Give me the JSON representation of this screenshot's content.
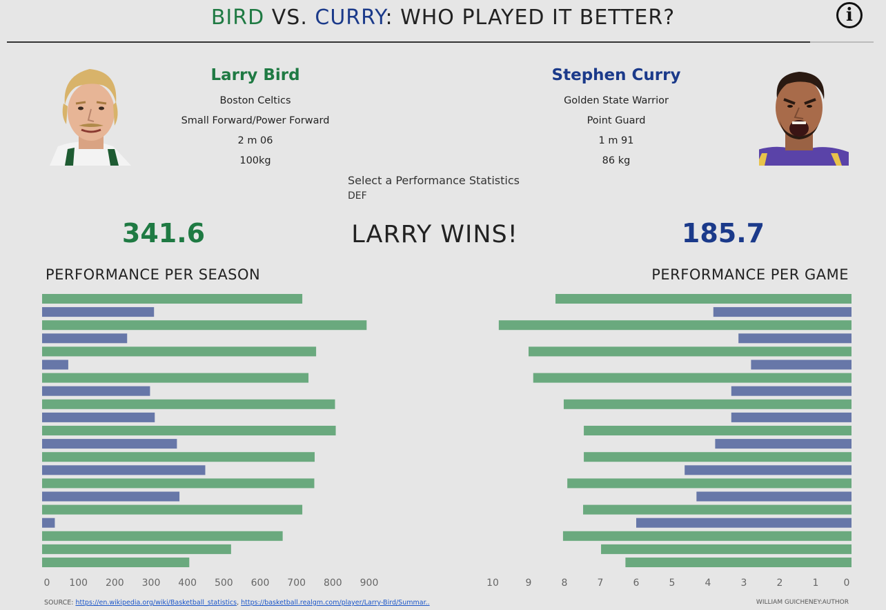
{
  "header": {
    "title_part1": "BIRD",
    "title_part2": " VS. ",
    "title_part3": "CURRY",
    "title_part4": ": WHO PLAYED IT BETTER?",
    "info_icon": "info-icon"
  },
  "players": {
    "bird": {
      "name": "Larry Bird",
      "team": "Boston Celtics",
      "position": "Small Forward/Power Forward",
      "height": "2 m 06",
      "weight": "100kg",
      "score": "341.6",
      "color": "#1f7a43"
    },
    "curry": {
      "name": "Stephen Curry",
      "team": "Golden State Warrior",
      "position": "Point Guard",
      "height": "1 m 91",
      "weight": "86 kg",
      "score": "185.7",
      "color": "#1b3a8a"
    }
  },
  "selector": {
    "label": "Select a Performance Statistics",
    "value": "DEF"
  },
  "result": "LARRY WINS!",
  "chart_data": [
    {
      "type": "bar",
      "title": "PERFORMANCE PER SEASON",
      "orientation": "horizontal",
      "xlim": [
        0,
        900
      ],
      "ticks": [
        0,
        100,
        200,
        300,
        400,
        500,
        600,
        700,
        800,
        900
      ],
      "colors": {
        "bird": "#6aa97e",
        "curry": "#6777a8"
      },
      "bars": [
        {
          "player": "bird",
          "value": 716
        },
        {
          "player": "curry",
          "value": 308
        },
        {
          "player": "bird",
          "value": 893
        },
        {
          "player": "curry",
          "value": 234
        },
        {
          "player": "bird",
          "value": 754
        },
        {
          "player": "curry",
          "value": 72
        },
        {
          "player": "bird",
          "value": 733
        },
        {
          "player": "curry",
          "value": 297
        },
        {
          "player": "bird",
          "value": 806
        },
        {
          "player": "curry",
          "value": 310
        },
        {
          "player": "bird",
          "value": 808
        },
        {
          "player": "curry",
          "value": 371
        },
        {
          "player": "bird",
          "value": 750
        },
        {
          "player": "curry",
          "value": 449
        },
        {
          "player": "bird",
          "value": 749
        },
        {
          "player": "curry",
          "value": 378
        },
        {
          "player": "bird",
          "value": 716
        },
        {
          "player": "curry",
          "value": 35
        },
        {
          "player": "bird",
          "value": 662
        },
        {
          "player": "bird",
          "value": 520
        },
        {
          "player": "bird",
          "value": 405
        }
      ]
    },
    {
      "type": "bar",
      "title": "PERFORMANCE PER GAME",
      "orientation": "horizontal-reversed",
      "xlim": [
        0,
        10
      ],
      "ticks": [
        10,
        9,
        8,
        7,
        6,
        5,
        4,
        3,
        2,
        1,
        0
      ],
      "colors": {
        "bird": "#6aa97e",
        "curry": "#6777a8"
      },
      "bars": [
        {
          "player": "bird",
          "value": 8.25
        },
        {
          "player": "curry",
          "value": 3.85
        },
        {
          "player": "bird",
          "value": 9.83
        },
        {
          "player": "curry",
          "value": 3.15
        },
        {
          "player": "bird",
          "value": 9.0
        },
        {
          "player": "curry",
          "value": 2.8
        },
        {
          "player": "bird",
          "value": 8.87
        },
        {
          "player": "curry",
          "value": 3.35
        },
        {
          "player": "bird",
          "value": 8.02
        },
        {
          "player": "curry",
          "value": 3.35
        },
        {
          "player": "bird",
          "value": 7.46
        },
        {
          "player": "curry",
          "value": 3.8
        },
        {
          "player": "bird",
          "value": 7.46
        },
        {
          "player": "curry",
          "value": 4.65
        },
        {
          "player": "bird",
          "value": 7.92
        },
        {
          "player": "curry",
          "value": 4.32
        },
        {
          "player": "bird",
          "value": 7.48
        },
        {
          "player": "curry",
          "value": 6.0
        },
        {
          "player": "bird",
          "value": 8.04
        },
        {
          "player": "bird",
          "value": 6.98
        },
        {
          "player": "bird",
          "value": 6.3
        }
      ]
    }
  ],
  "footer": {
    "source_label": "SOURCE: ",
    "link1": "https://en.wikipedia.org/wiki/Basketball_statistics",
    "separator": ", ",
    "link2": "https://basketball.realgm.com/player/Larry-Bird/Summar..",
    "author": "WILLIAM GUICHENEY:AUTHOR"
  }
}
